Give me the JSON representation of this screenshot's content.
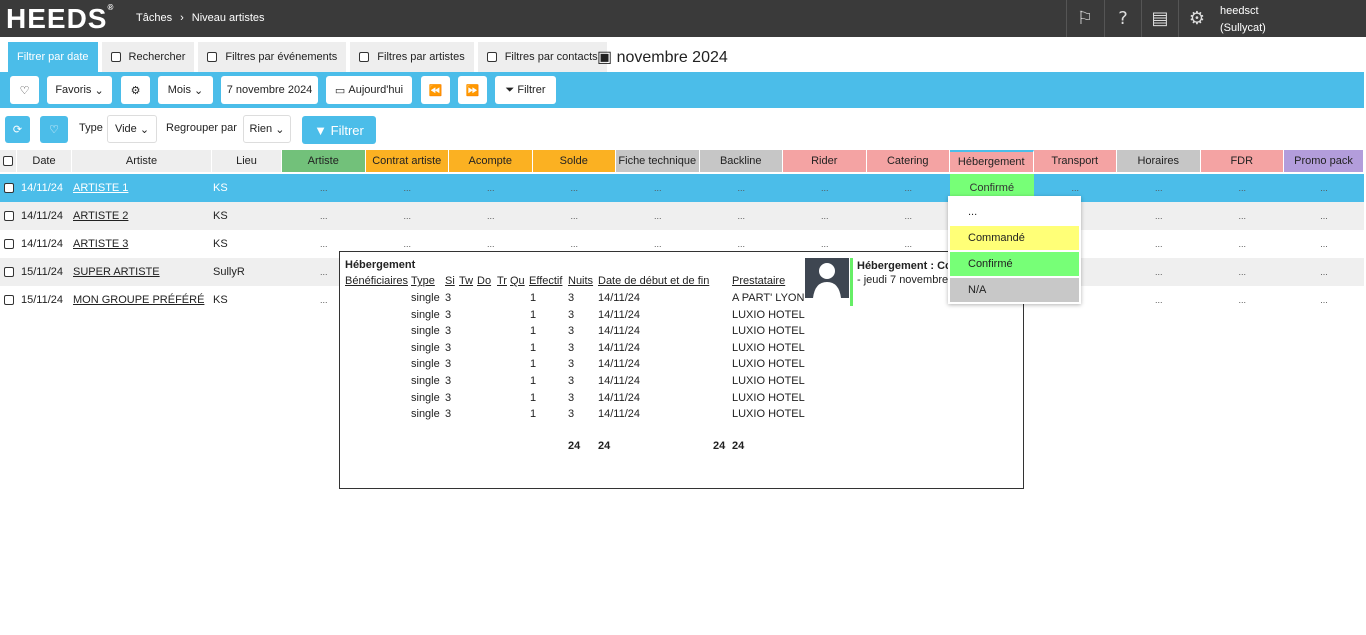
{
  "header": {
    "logo": "HEEDS",
    "breadcrumb": [
      "Tâches",
      "Niveau artistes"
    ],
    "user_name": "heedsct",
    "user_org": "(Sullycat)",
    "icons": [
      "flag-icon",
      "help-icon",
      "book-icon",
      "gear-icon"
    ]
  },
  "tabs": [
    {
      "label": "Filtrer par date",
      "active": true
    },
    {
      "label": "Rechercher"
    },
    {
      "label": "Filtres par événements"
    },
    {
      "label": "Filtres par artistes"
    },
    {
      "label": "Filtres par contacts"
    }
  ],
  "current_month": "novembre 2024",
  "toolbar": {
    "favorites": "Favoris",
    "period": "Mois",
    "date": "7 novembre 2024",
    "today": "Aujourd'hui",
    "filter": "Filtrer"
  },
  "toolbar2": {
    "type_label": "Type",
    "type_value": "Vide",
    "group_label": "Regrouper par",
    "group_value": "Rien",
    "filter": "Filtrer"
  },
  "columns": [
    {
      "label": "Date"
    },
    {
      "label": "Artiste"
    },
    {
      "label": "Lieu"
    },
    {
      "label": "Artiste",
      "color": "#72c17a"
    },
    {
      "label": "Contrat artiste",
      "color": "#fbb122"
    },
    {
      "label": "Acompte",
      "color": "#fbb122"
    },
    {
      "label": "Solde",
      "color": "#fbb122"
    },
    {
      "label": "Fiche technique",
      "color": "#c6c6c6"
    },
    {
      "label": "Backline",
      "color": "#c6c6c6"
    },
    {
      "label": "Rider",
      "color": "#f4a3a3"
    },
    {
      "label": "Catering",
      "color": "#f4a3a3"
    },
    {
      "label": "Hébergement",
      "color": "#f4a3a3"
    },
    {
      "label": "Transport",
      "color": "#f4a3a3"
    },
    {
      "label": "Horaires",
      "color": "#c6c6c6"
    },
    {
      "label": "FDR",
      "color": "#f4a3a3"
    },
    {
      "label": "Promo pack",
      "color": "#b39ddb"
    }
  ],
  "rows": [
    {
      "date": "14/11/24",
      "artist": "ARTISTE 1",
      "venue": "KS",
      "selected": true,
      "hebergement": "Confirmé"
    },
    {
      "date": "14/11/24",
      "artist": "ARTISTE 2",
      "venue": "KS"
    },
    {
      "date": "14/11/24",
      "artist": "ARTISTE 3",
      "venue": "KS"
    },
    {
      "date": "15/11/24",
      "artist": "SUPER ARTISTE",
      "venue": "SullyR"
    },
    {
      "date": "15/11/24",
      "artist": "MON GROUPE PRÉFÉRÉ",
      "venue": "KS"
    }
  ],
  "empty_cell": "...",
  "popup": {
    "title": "Hébergement",
    "headers": [
      "Bénéficiaires",
      "Type",
      "Si",
      "Tw",
      "Do",
      "Tr",
      "Qu",
      "Effectif",
      "Nuits",
      "Date de début et de fin",
      "Prestataire"
    ],
    "rows": [
      [
        "single",
        "3",
        "1",
        "3",
        "14/11/24",
        "A PART' LYON"
      ],
      [
        "single",
        "3",
        "1",
        "3",
        "14/11/24",
        "LUXIO HOTEL"
      ],
      [
        "single",
        "3",
        "1",
        "3",
        "14/11/24",
        "LUXIO HOTEL"
      ],
      [
        "single",
        "3",
        "1",
        "3",
        "14/11/24",
        "LUXIO HOTEL"
      ],
      [
        "single",
        "3",
        "1",
        "3",
        "14/11/24",
        "LUXIO HOTEL"
      ],
      [
        "single",
        "3",
        "1",
        "3",
        "14/11/24",
        "LUXIO HOTEL"
      ],
      [
        "single",
        "3",
        "1",
        "3",
        "14/11/24",
        "LUXIO HOTEL"
      ],
      [
        "single",
        "3",
        "1",
        "3",
        "14/11/24",
        "LUXIO HOTEL"
      ]
    ],
    "totals": [
      "24",
      "24",
      "24",
      "24"
    ]
  },
  "tooltip": {
    "title": "Hébergement : Co",
    "line": "- jeudi 7 novembre"
  },
  "dropdown": [
    {
      "label": "...",
      "color": "#ffffff"
    },
    {
      "label": "Commandé",
      "color": "#ffff77"
    },
    {
      "label": "Confirmé",
      "color": "#77ff77"
    },
    {
      "label": "N/A",
      "color": "#c8c8c8"
    }
  ]
}
